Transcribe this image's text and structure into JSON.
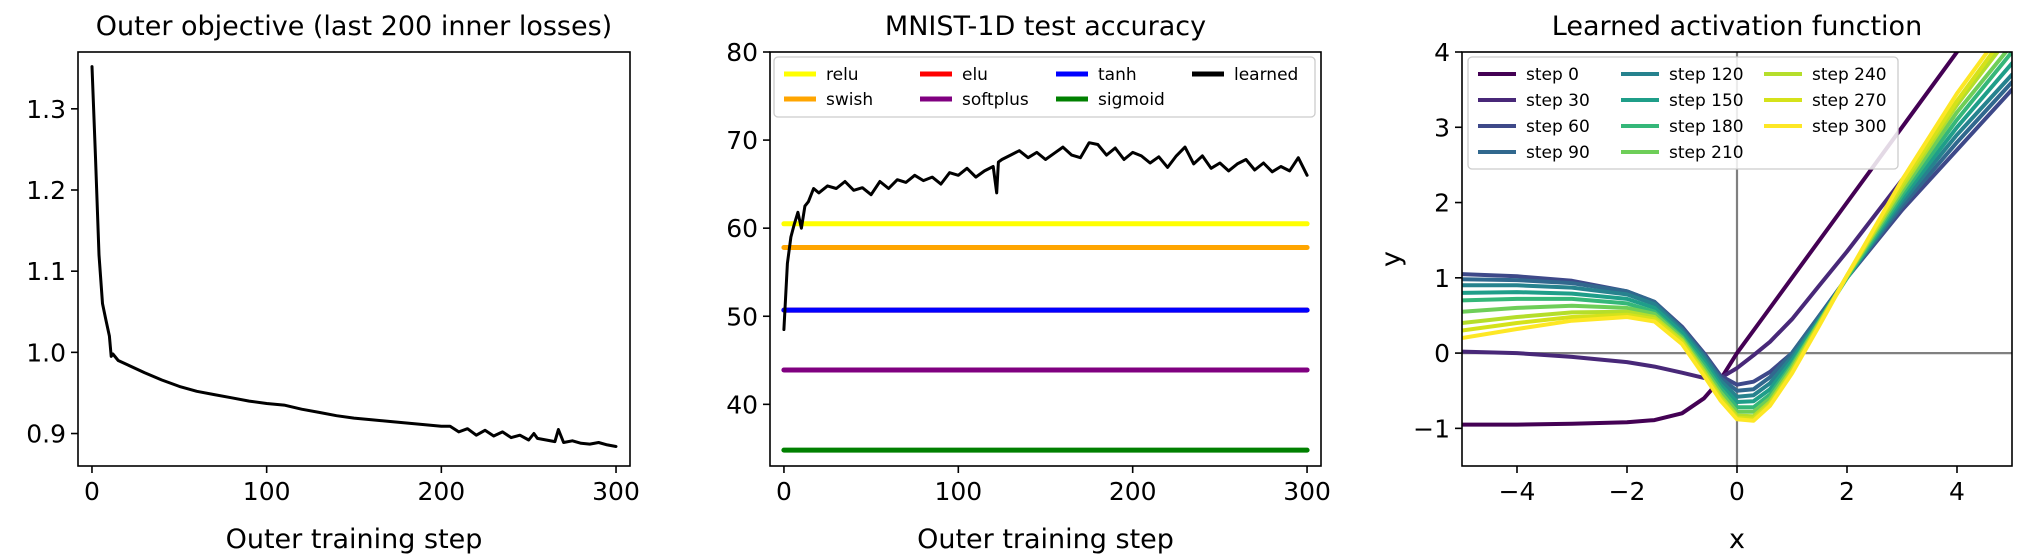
{
  "chart_data": [
    {
      "type": "line",
      "title": "Outer objective (last 200 inner losses)",
      "xlabel": "Outer training step",
      "ylabel": "",
      "xlim": [
        -8,
        308
      ],
      "ylim": [
        0.86,
        1.37
      ],
      "xticks": [
        0,
        100,
        200,
        300
      ],
      "yticks": [
        0.9,
        1.0,
        1.1,
        1.2,
        1.3
      ],
      "ytick_labels": [
        "0.9",
        "1.0",
        "1.1",
        "1.2",
        "1.3"
      ],
      "grid": false,
      "series": [
        {
          "color": "#000000",
          "x": [
            0,
            2,
            4,
            6,
            8,
            10,
            11,
            12,
            15,
            20,
            30,
            40,
            50,
            60,
            70,
            80,
            90,
            100,
            110,
            120,
            130,
            140,
            150,
            160,
            170,
            180,
            190,
            200,
            205,
            210,
            215,
            220,
            225,
            230,
            235,
            240,
            245,
            250,
            253,
            255,
            260,
            265,
            267,
            270,
            275,
            280,
            285,
            290,
            295,
            300
          ],
          "y": [
            1.352,
            1.24,
            1.12,
            1.06,
            1.04,
            1.02,
            0.995,
            0.998,
            0.99,
            0.985,
            0.975,
            0.966,
            0.958,
            0.952,
            0.948,
            0.944,
            0.94,
            0.937,
            0.935,
            0.93,
            0.926,
            0.922,
            0.919,
            0.917,
            0.915,
            0.913,
            0.911,
            0.909,
            0.909,
            0.902,
            0.906,
            0.898,
            0.904,
            0.897,
            0.902,
            0.895,
            0.898,
            0.892,
            0.9,
            0.894,
            0.892,
            0.89,
            0.905,
            0.889,
            0.891,
            0.888,
            0.887,
            0.889,
            0.886,
            0.884
          ]
        }
      ]
    },
    {
      "type": "line",
      "title": "MNIST-1D test accuracy",
      "xlabel": "Outer training step",
      "ylabel": "",
      "xlim": [
        -8,
        308
      ],
      "ylim": [
        33,
        80
      ],
      "xticks": [
        0,
        100,
        200,
        300
      ],
      "yticks": [
        40,
        50,
        60,
        70,
        80
      ],
      "ytick_labels": [
        "40",
        "50",
        "60",
        "70",
        "80"
      ],
      "grid": false,
      "legend_position": "top",
      "series": [
        {
          "name": "relu",
          "color": "#ffff00",
          "x": [
            0,
            300
          ],
          "y": [
            60.5,
            60.5
          ]
        },
        {
          "name": "swish",
          "color": "#ffa500",
          "x": [
            0,
            300
          ],
          "y": [
            57.8,
            57.8
          ]
        },
        {
          "name": "elu",
          "color": "#ff0000",
          "x": [
            0,
            300
          ],
          "y": [
            50.7,
            50.7
          ]
        },
        {
          "name": "softplus",
          "color": "#800080",
          "x": [
            0,
            300
          ],
          "y": [
            43.9,
            43.9
          ]
        },
        {
          "name": "tanh",
          "color": "#0000ff",
          "x": [
            0,
            300
          ],
          "y": [
            50.7,
            50.7
          ]
        },
        {
          "name": "sigmoid",
          "color": "#008000",
          "x": [
            0,
            300
          ],
          "y": [
            34.8,
            34.8
          ]
        },
        {
          "name": "learned",
          "color": "#000000",
          "x": [
            0,
            2,
            4,
            6,
            8,
            10,
            12,
            14,
            17,
            20,
            25,
            30,
            35,
            40,
            45,
            50,
            55,
            60,
            65,
            70,
            75,
            80,
            85,
            90,
            95,
            100,
            105,
            110,
            115,
            120,
            122,
            123,
            125,
            130,
            135,
            140,
            145,
            150,
            155,
            160,
            165,
            170,
            175,
            180,
            185,
            190,
            195,
            200,
            205,
            210,
            215,
            220,
            225,
            230,
            235,
            240,
            245,
            250,
            255,
            260,
            265,
            270,
            275,
            280,
            285,
            290,
            295,
            300
          ],
          "y": [
            48.5,
            56.0,
            59.0,
            60.5,
            61.8,
            60.0,
            62.5,
            63.0,
            64.5,
            64.0,
            64.8,
            64.5,
            65.3,
            64.3,
            64.6,
            63.8,
            65.3,
            64.5,
            65.5,
            65.2,
            66.0,
            65.4,
            65.8,
            65.0,
            66.3,
            66.0,
            66.8,
            65.8,
            66.5,
            67.0,
            64.0,
            67.5,
            67.8,
            68.3,
            68.8,
            68.0,
            68.6,
            67.8,
            68.5,
            69.2,
            68.3,
            68.0,
            69.7,
            69.5,
            68.3,
            69.1,
            67.8,
            68.6,
            68.2,
            67.4,
            68.1,
            66.9,
            68.2,
            69.2,
            67.3,
            68.2,
            66.8,
            67.4,
            66.5,
            67.3,
            67.8,
            66.6,
            67.4,
            66.4,
            67.0,
            66.5,
            68.0,
            66.0
          ]
        }
      ]
    },
    {
      "type": "line",
      "title": "Learned activation function",
      "xlabel": "x",
      "ylabel": "y",
      "xlim": [
        -5,
        5
      ],
      "ylim": [
        -1.5,
        4
      ],
      "xticks": [
        -4,
        -2,
        0,
        2,
        4
      ],
      "xtick_labels": [
        "−4",
        "−2",
        "0",
        "2",
        "4"
      ],
      "yticks": [
        -1,
        0,
        1,
        2,
        3,
        4
      ],
      "ytick_labels": [
        "−1",
        "0",
        "1",
        "2",
        "3",
        "4"
      ],
      "reference_lines": "x = 0 and y = 0 in gray",
      "grid": false,
      "legend_position": "top-left",
      "series": [
        {
          "name": "step 0",
          "color": "#440154",
          "x": [
            -5,
            -4,
            -3,
            -2,
            -1.5,
            -1,
            -0.6,
            -0.3,
            0,
            0.5,
            1,
            2,
            3,
            4,
            5
          ],
          "y": [
            -0.95,
            -0.95,
            -0.94,
            -0.92,
            -0.89,
            -0.8,
            -0.6,
            -0.35,
            0.0,
            0.5,
            1.0,
            2.0,
            3.0,
            4.0,
            5.0
          ]
        },
        {
          "name": "step 30",
          "color": "#482878",
          "x": [
            -5,
            -4,
            -3,
            -2,
            -1.5,
            -1,
            -0.6,
            -0.3,
            0,
            0.3,
            0.6,
            1,
            1.5,
            2,
            3,
            4,
            5
          ],
          "y": [
            0.02,
            0.0,
            -0.05,
            -0.12,
            -0.18,
            -0.26,
            -0.33,
            -0.33,
            -0.2,
            -0.03,
            0.15,
            0.45,
            0.9,
            1.35,
            2.3,
            3.3,
            4.3
          ]
        },
        {
          "name": "step 60",
          "color": "#3e4989",
          "x": [
            -5,
            -4,
            -3,
            -2,
            -1.5,
            -1,
            -0.6,
            -0.3,
            0,
            0.3,
            0.6,
            1,
            1.5,
            2,
            3,
            4,
            5
          ],
          "y": [
            1.05,
            1.02,
            0.96,
            0.82,
            0.68,
            0.35,
            0.0,
            -0.3,
            -0.42,
            -0.38,
            -0.25,
            0.0,
            0.5,
            1.0,
            1.9,
            2.7,
            3.5
          ]
        },
        {
          "name": "step 90",
          "color": "#31688e",
          "x": [
            -5,
            -4,
            -3,
            -2,
            -1.5,
            -1,
            -0.6,
            -0.3,
            0,
            0.3,
            0.6,
            1,
            1.5,
            2,
            3,
            4,
            5
          ],
          "y": [
            0.98,
            0.97,
            0.93,
            0.82,
            0.68,
            0.33,
            -0.02,
            -0.33,
            -0.5,
            -0.48,
            -0.32,
            0.0,
            0.5,
            1.0,
            1.95,
            2.8,
            3.6
          ]
        },
        {
          "name": "step 120",
          "color": "#26828e",
          "x": [
            -5,
            -4,
            -3,
            -2,
            -1.5,
            -1,
            -0.6,
            -0.3,
            0,
            0.3,
            0.6,
            1,
            1.5,
            2,
            3,
            4,
            5
          ],
          "y": [
            0.9,
            0.9,
            0.87,
            0.78,
            0.65,
            0.3,
            -0.05,
            -0.37,
            -0.58,
            -0.56,
            -0.4,
            -0.05,
            0.45,
            1.0,
            2.0,
            2.9,
            3.7
          ]
        },
        {
          "name": "step 150",
          "color": "#1f9e89",
          "x": [
            -5,
            -4,
            -3,
            -2,
            -1.5,
            -1,
            -0.6,
            -0.3,
            0,
            0.3,
            0.6,
            1,
            1.5,
            2,
            3,
            4,
            5
          ],
          "y": [
            0.8,
            0.81,
            0.79,
            0.72,
            0.6,
            0.27,
            -0.1,
            -0.42,
            -0.65,
            -0.64,
            -0.48,
            -0.1,
            0.45,
            1.0,
            2.05,
            3.0,
            3.85
          ]
        },
        {
          "name": "step 180",
          "color": "#35b779",
          "x": [
            -5,
            -4,
            -3,
            -2,
            -1.5,
            -1,
            -0.6,
            -0.3,
            0,
            0.3,
            0.6,
            1,
            1.5,
            2,
            3,
            4,
            5
          ],
          "y": [
            0.7,
            0.72,
            0.72,
            0.66,
            0.55,
            0.22,
            -0.15,
            -0.47,
            -0.72,
            -0.72,
            -0.55,
            -0.15,
            0.42,
            1.0,
            2.1,
            3.1,
            4.0
          ]
        },
        {
          "name": "step 210",
          "color": "#6ece58",
          "x": [
            -5,
            -4,
            -3,
            -2,
            -1.5,
            -1,
            -0.6,
            -0.3,
            0,
            0.3,
            0.6,
            1,
            1.5,
            2,
            3,
            4,
            5
          ],
          "y": [
            0.55,
            0.6,
            0.63,
            0.6,
            0.52,
            0.2,
            -0.2,
            -0.52,
            -0.78,
            -0.78,
            -0.6,
            -0.18,
            0.42,
            1.02,
            2.15,
            3.2,
            4.1
          ]
        },
        {
          "name": "step 240",
          "color": "#b5de2b",
          "x": [
            -5,
            -4,
            -3,
            -2,
            -1.5,
            -1,
            -0.6,
            -0.3,
            0,
            0.3,
            0.6,
            1,
            1.5,
            2,
            3,
            4,
            5
          ],
          "y": [
            0.4,
            0.48,
            0.54,
            0.55,
            0.48,
            0.17,
            -0.24,
            -0.57,
            -0.83,
            -0.84,
            -0.65,
            -0.22,
            0.4,
            1.03,
            2.2,
            3.3,
            4.25
          ]
        },
        {
          "name": "step 270",
          "color": "#d5e21a",
          "x": [
            -5,
            -4,
            -3,
            -2,
            -1.5,
            -1,
            -0.6,
            -0.3,
            0,
            0.3,
            0.6,
            1,
            1.5,
            2,
            3,
            4,
            5
          ],
          "y": [
            0.3,
            0.4,
            0.48,
            0.51,
            0.45,
            0.15,
            -0.27,
            -0.6,
            -0.86,
            -0.87,
            -0.68,
            -0.25,
            0.38,
            1.03,
            2.25,
            3.35,
            4.35
          ]
        },
        {
          "name": "step 300",
          "color": "#fde725",
          "x": [
            -5,
            -4,
            -3,
            -2,
            -1.5,
            -1,
            -0.6,
            -0.3,
            0,
            0.3,
            0.6,
            1,
            1.5,
            2,
            3,
            4,
            5
          ],
          "y": [
            0.2,
            0.32,
            0.43,
            0.48,
            0.42,
            0.12,
            -0.3,
            -0.63,
            -0.88,
            -0.9,
            -0.7,
            -0.27,
            0.37,
            1.03,
            2.3,
            3.45,
            4.45
          ]
        }
      ]
    }
  ]
}
